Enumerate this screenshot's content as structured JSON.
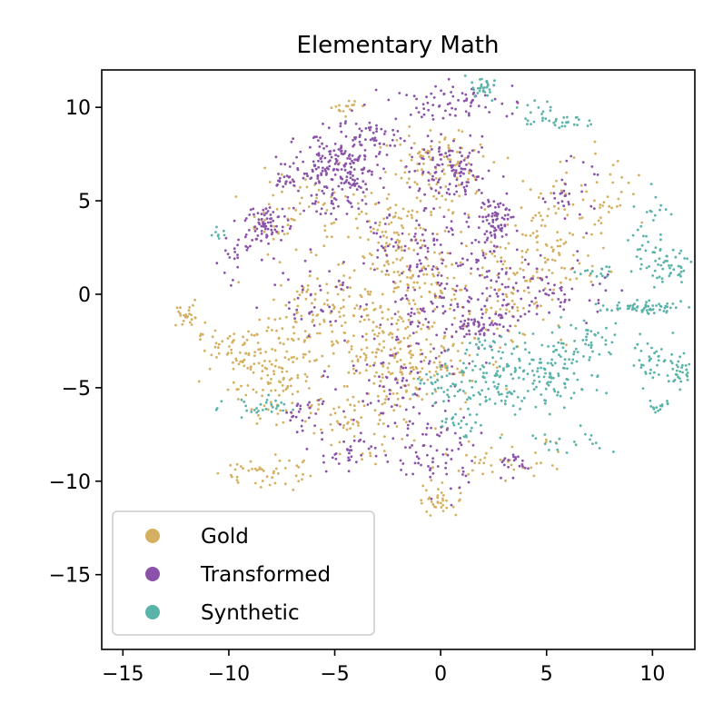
{
  "chart_data": {
    "type": "scatter",
    "title": "Elementary Math",
    "xlabel": "",
    "ylabel": "",
    "xlim": [
      -16,
      12
    ],
    "ylim": [
      -19,
      12
    ],
    "xticks": [
      -15,
      -10,
      -5,
      0,
      5,
      10
    ],
    "yticks": [
      -15,
      -10,
      -5,
      0,
      5,
      10
    ],
    "xtick_labels": [
      "−15",
      "−10",
      "−5",
      "0",
      "5",
      "10"
    ],
    "ytick_labels": [
      "−15",
      "−10",
      "−5",
      "0",
      "5",
      "10"
    ],
    "grid": false,
    "legend_position": "lower-left",
    "series": [
      {
        "name": "Gold",
        "color": "#d5b060",
        "clusters": [
          {
            "x": -12,
            "y": -1.2,
            "sx": 0.4,
            "sy": 0.3,
            "n": 25
          },
          {
            "x": -9.5,
            "y": -3,
            "sx": 1.0,
            "sy": 0.6,
            "n": 60
          },
          {
            "x": -7.5,
            "y": -4.5,
            "sx": 1.2,
            "sy": 1.2,
            "n": 110
          },
          {
            "x": -8.5,
            "y": -9.5,
            "sx": 1.0,
            "sy": 0.5,
            "n": 45
          },
          {
            "x": -6,
            "y": -1,
            "sx": 1.3,
            "sy": 1.0,
            "n": 90
          },
          {
            "x": -3,
            "y": -2.5,
            "sx": 1.5,
            "sy": 1.5,
            "n": 120
          },
          {
            "x": -1,
            "y": -4,
            "sx": 1.4,
            "sy": 1.2,
            "n": 110
          },
          {
            "x": 0,
            "y": -11,
            "sx": 0.6,
            "sy": 0.5,
            "n": 35
          },
          {
            "x": -1.5,
            "y": 0.5,
            "sx": 1.2,
            "sy": 1.0,
            "n": 90
          },
          {
            "x": -2,
            "y": 3.5,
            "sx": 1.4,
            "sy": 1.3,
            "n": 100
          },
          {
            "x": 0,
            "y": 7,
            "sx": 1.5,
            "sy": 1.0,
            "n": 90
          },
          {
            "x": 3,
            "y": 0,
            "sx": 1.5,
            "sy": 1.5,
            "n": 90
          },
          {
            "x": 5,
            "y": 2.5,
            "sx": 1.4,
            "sy": 1.3,
            "n": 90
          },
          {
            "x": 7.5,
            "y": 5,
            "sx": 1.2,
            "sy": 1.2,
            "n": 50
          },
          {
            "x": -7,
            "y": 4.5,
            "sx": 1.2,
            "sy": 1.2,
            "n": 60
          },
          {
            "x": -4.5,
            "y": 10,
            "sx": 0.4,
            "sy": 0.2,
            "n": 15
          },
          {
            "x": 3,
            "y": -9,
            "sx": 1.5,
            "sy": 0.6,
            "n": 40
          },
          {
            "x": -4,
            "y": -7,
            "sx": 1.2,
            "sy": 1.0,
            "n": 60
          }
        ]
      },
      {
        "name": "Transformed",
        "color": "#8a52a8",
        "clusters": [
          {
            "x": -4.8,
            "y": 6.5,
            "sx": 1.0,
            "sy": 1.1,
            "n": 220
          },
          {
            "x": -8.2,
            "y": 3.8,
            "sx": 0.5,
            "sy": 0.5,
            "n": 70
          },
          {
            "x": -7,
            "y": 6.3,
            "sx": 0.5,
            "sy": 0.4,
            "n": 30
          },
          {
            "x": -3,
            "y": 8.5,
            "sx": 0.6,
            "sy": 0.5,
            "n": 40
          },
          {
            "x": 0.5,
            "y": 6.5,
            "sx": 1.0,
            "sy": 0.8,
            "n": 120
          },
          {
            "x": 0.5,
            "y": 10.3,
            "sx": 1.5,
            "sy": 0.5,
            "n": 70
          },
          {
            "x": 2.5,
            "y": 4,
            "sx": 0.5,
            "sy": 0.6,
            "n": 80
          },
          {
            "x": -1.5,
            "y": 3,
            "sx": 1.2,
            "sy": 1.0,
            "n": 70
          },
          {
            "x": 1.5,
            "y": 0.5,
            "sx": 1.5,
            "sy": 1.5,
            "n": 90
          },
          {
            "x": 2,
            "y": -1.8,
            "sx": 0.6,
            "sy": 0.4,
            "n": 50
          },
          {
            "x": 5.5,
            "y": 0,
            "sx": 1.2,
            "sy": 0.8,
            "n": 60
          },
          {
            "x": 6,
            "y": 5.5,
            "sx": 0.6,
            "sy": 0.8,
            "n": 30
          },
          {
            "x": -2,
            "y": -5,
            "sx": 1.5,
            "sy": 1.5,
            "n": 80
          },
          {
            "x": -0.5,
            "y": -8.5,
            "sx": 1.2,
            "sy": 1.2,
            "n": 70
          },
          {
            "x": -4.5,
            "y": -8.5,
            "sx": 0.6,
            "sy": 0.6,
            "n": 30
          },
          {
            "x": -6.5,
            "y": -6.5,
            "sx": 0.5,
            "sy": 0.5,
            "n": 25
          },
          {
            "x": -6,
            "y": 0,
            "sx": 1.0,
            "sy": 1.0,
            "n": 40
          },
          {
            "x": 3.5,
            "y": -9,
            "sx": 0.5,
            "sy": 0.3,
            "n": 20
          },
          {
            "x": -9.5,
            "y": 2,
            "sx": 0.8,
            "sy": 0.8,
            "n": 25
          },
          {
            "x": -1,
            "y": -1,
            "sx": 1.5,
            "sy": 1.2,
            "n": 70
          }
        ]
      },
      {
        "name": "Synthetic",
        "color": "#5ab3a9",
        "clusters": [
          {
            "x": 2,
            "y": 11,
            "sx": 0.4,
            "sy": 0.3,
            "n": 30
          },
          {
            "x": 5.5,
            "y": 9.2,
            "sx": 0.8,
            "sy": 0.15,
            "n": 30
          },
          {
            "x": 4.5,
            "y": 10,
            "sx": 0.5,
            "sy": 0.3,
            "n": 10
          },
          {
            "x": 9.5,
            "y": -0.7,
            "sx": 0.9,
            "sy": 0.15,
            "n": 60
          },
          {
            "x": 10.8,
            "y": 1.5,
            "sx": 0.6,
            "sy": 0.4,
            "n": 40
          },
          {
            "x": 10,
            "y": 3,
            "sx": 0.5,
            "sy": 1.5,
            "n": 40
          },
          {
            "x": 10,
            "y": -3.5,
            "sx": 0.5,
            "sy": 0.6,
            "n": 35
          },
          {
            "x": 11.3,
            "y": -4,
            "sx": 0.25,
            "sy": 0.5,
            "n": 30
          },
          {
            "x": 10.3,
            "y": -6,
            "sx": 0.3,
            "sy": 0.2,
            "n": 15
          },
          {
            "x": 3,
            "y": -4.5,
            "sx": 1.2,
            "sy": 0.9,
            "n": 120
          },
          {
            "x": 5.5,
            "y": -4,
            "sx": 1.2,
            "sy": 1.0,
            "n": 80
          },
          {
            "x": 7,
            "y": -2.5,
            "sx": 0.8,
            "sy": 0.8,
            "n": 40
          },
          {
            "x": 0,
            "y": -5,
            "sx": 0.6,
            "sy": 0.4,
            "n": 30
          },
          {
            "x": 1,
            "y": -7,
            "sx": 0.6,
            "sy": 0.5,
            "n": 25
          },
          {
            "x": -8.5,
            "y": -6,
            "sx": 1.0,
            "sy": 0.3,
            "n": 30
          },
          {
            "x": 6,
            "y": -8,
            "sx": 1.0,
            "sy": 0.4,
            "n": 20
          },
          {
            "x": 7.5,
            "y": 1.2,
            "sx": 0.5,
            "sy": 0.2,
            "n": 15
          },
          {
            "x": -10.5,
            "y": 3,
            "sx": 0.3,
            "sy": 0.3,
            "n": 8
          },
          {
            "x": 1.5,
            "y": -3,
            "sx": 0.5,
            "sy": 0.4,
            "n": 15
          }
        ]
      }
    ]
  }
}
